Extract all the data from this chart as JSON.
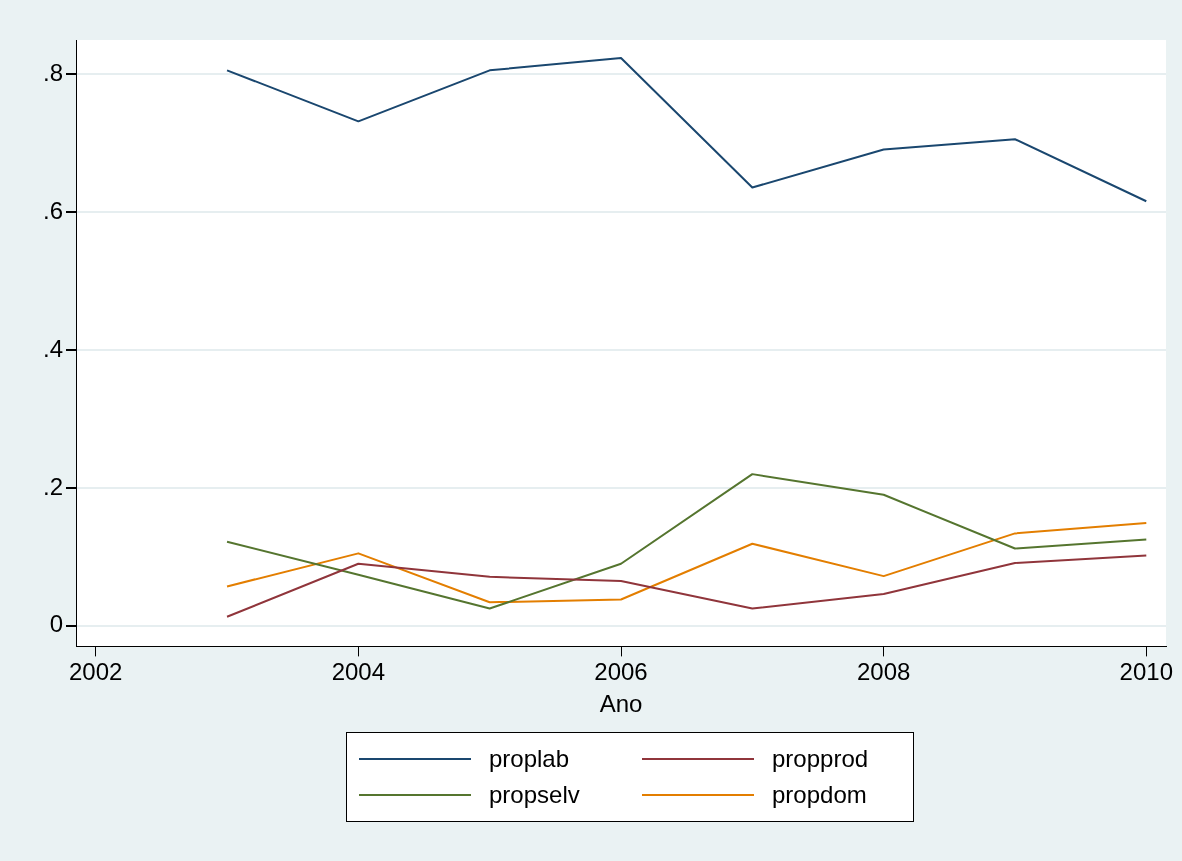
{
  "chart_data": {
    "type": "line",
    "xlabel": "Ano",
    "x": [
      2003,
      2004,
      2005,
      2006,
      2007,
      2008,
      2009,
      2010
    ],
    "series": [
      {
        "name": "proplab",
        "color": "#1a476f",
        "values": [
          0.806,
          0.732,
          0.806,
          0.824,
          0.636,
          0.691,
          0.706,
          0.616
        ]
      },
      {
        "name": "propprod",
        "color": "#90353b",
        "values": [
          0.013,
          0.09,
          0.071,
          0.065,
          0.025,
          0.046,
          0.091,
          0.102
        ]
      },
      {
        "name": "propselv",
        "color": "#55752f",
        "values": [
          0.122,
          0.074,
          0.025,
          0.09,
          0.22,
          0.19,
          0.112,
          0.125
        ]
      },
      {
        "name": "propdom",
        "color": "#e37e00",
        "values": [
          0.057,
          0.105,
          0.034,
          0.038,
          0.119,
          0.072,
          0.134,
          0.149
        ]
      }
    ],
    "xlim": [
      2001.85,
      2010.15
    ],
    "xticks": [
      2002,
      2004,
      2006,
      2008,
      2010
    ],
    "ylim": [
      -0.03,
      0.85
    ],
    "yticks": [
      {
        "value": 0,
        "label": "0"
      },
      {
        "value": 0.2,
        "label": ".2"
      },
      {
        "value": 0.4,
        "label": ".4"
      },
      {
        "value": 0.6,
        "label": ".6"
      },
      {
        "value": 0.8,
        "label": ".8"
      }
    ],
    "grid": "y",
    "legend": "bottom",
    "marker": "none",
    "line_style": "solid"
  }
}
